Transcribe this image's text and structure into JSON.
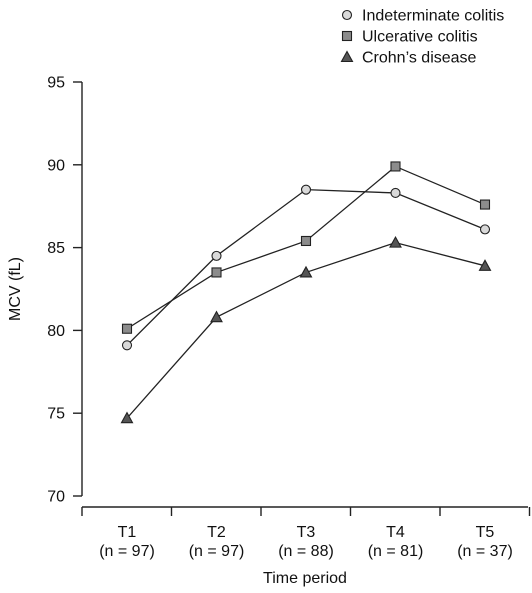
{
  "chart_data": {
    "type": "line",
    "title": "",
    "xlabel": "Time period",
    "ylabel": "MCV (fL)",
    "ylim": [
      70,
      95
    ],
    "yticks": [
      70,
      75,
      80,
      85,
      90,
      95
    ],
    "categories": [
      {
        "label": "T1",
        "sublabel": "(n = 97)"
      },
      {
        "label": "T2",
        "sublabel": "(n = 97)"
      },
      {
        "label": "T3",
        "sublabel": "(n = 88)"
      },
      {
        "label": "T4",
        "sublabel": "(n = 81)"
      },
      {
        "label": "T5",
        "sublabel": "(n = 37)"
      }
    ],
    "series": [
      {
        "name": "Indeterminate colitis",
        "marker": "circle",
        "fill": "#d9d9d9",
        "values": [
          79.1,
          84.5,
          88.5,
          88.3,
          86.1
        ]
      },
      {
        "name": "Ulcerative colitis",
        "marker": "square",
        "fill": "#8c8c8c",
        "values": [
          80.1,
          83.5,
          85.4,
          89.9,
          87.6
        ]
      },
      {
        "name": "Crohn’s disease",
        "marker": "triangle",
        "fill": "#555555",
        "values": [
          74.7,
          80.8,
          83.5,
          85.3,
          83.9
        ]
      }
    ],
    "legend_position": "top-right",
    "grid": false
  }
}
